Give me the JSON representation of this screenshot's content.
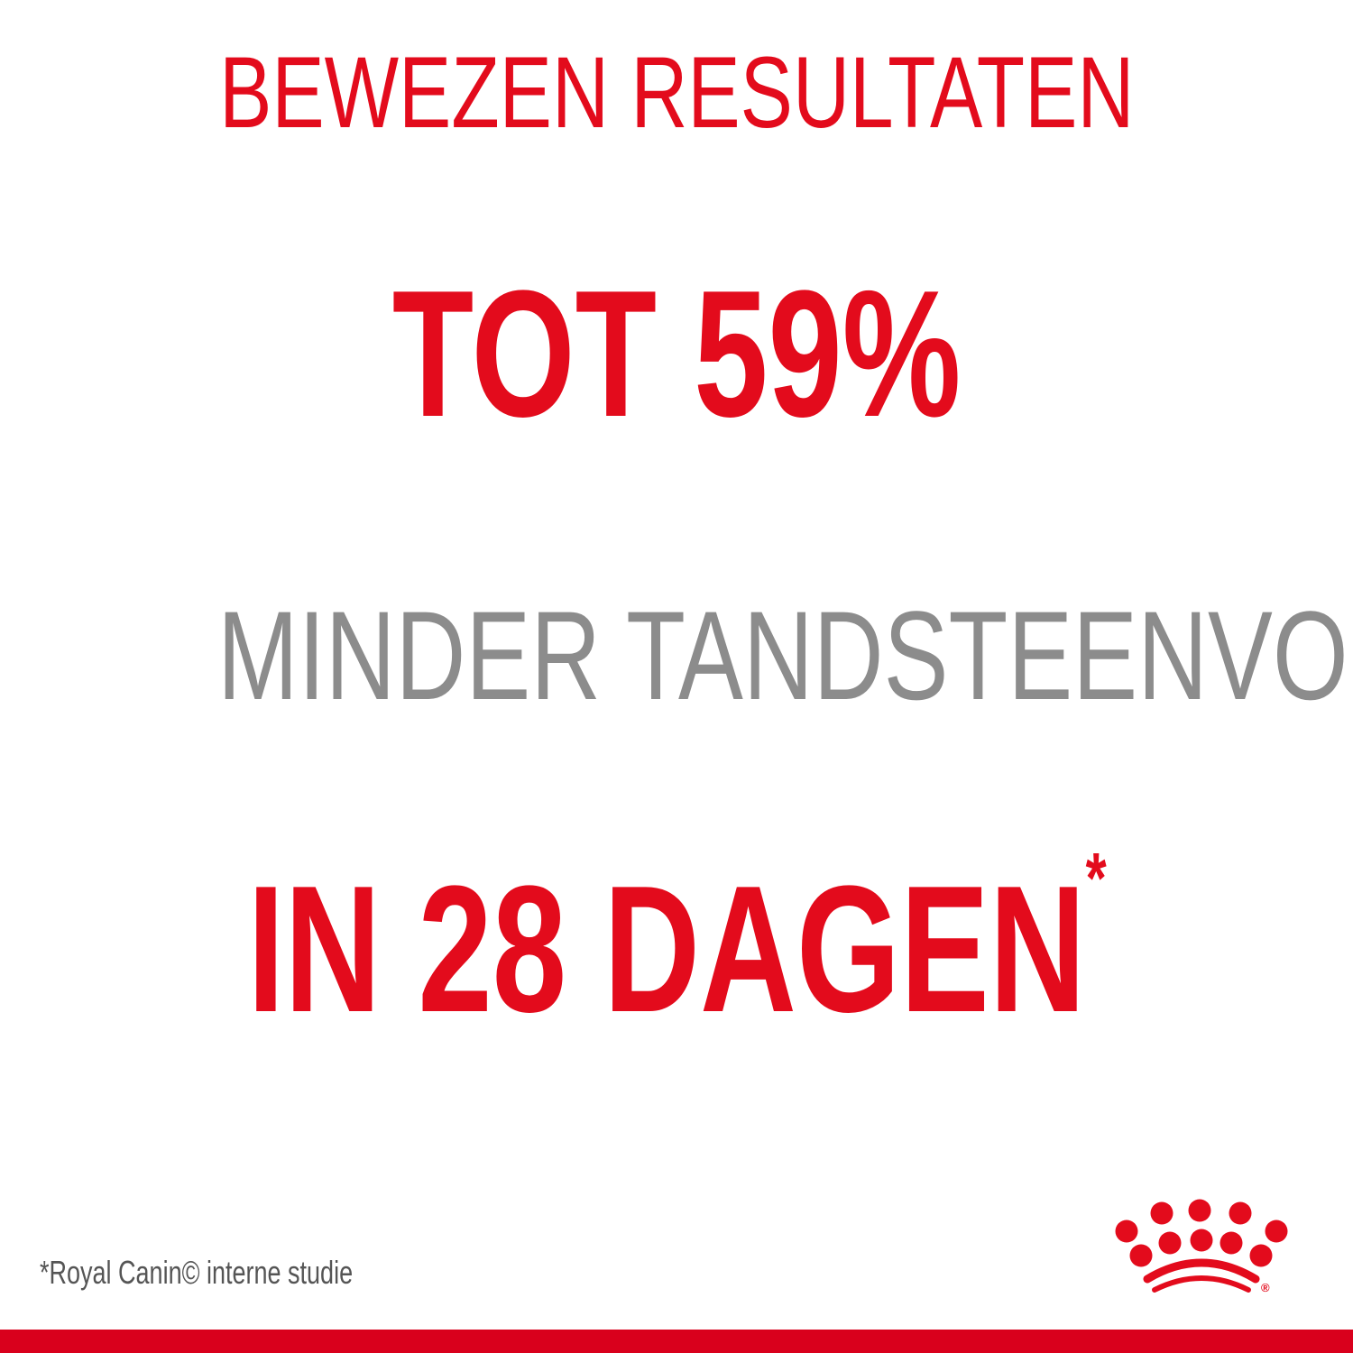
{
  "heading": "BEWEZEN RESULTATEN",
  "stat": "TOT 59%",
  "subheading": "MINDER TANDSTEENVORMING",
  "period": "IN 28 DAGEN",
  "period_marker": "*",
  "footnote": "*Royal Canin© interne studie",
  "logo": {
    "name": "Royal Canin crown logo",
    "icon": "crown-icon",
    "registered": "®"
  },
  "colors": {
    "brand_red": "#e30b1c",
    "grey": "#8c8c8c",
    "bar": "#d9001c"
  }
}
